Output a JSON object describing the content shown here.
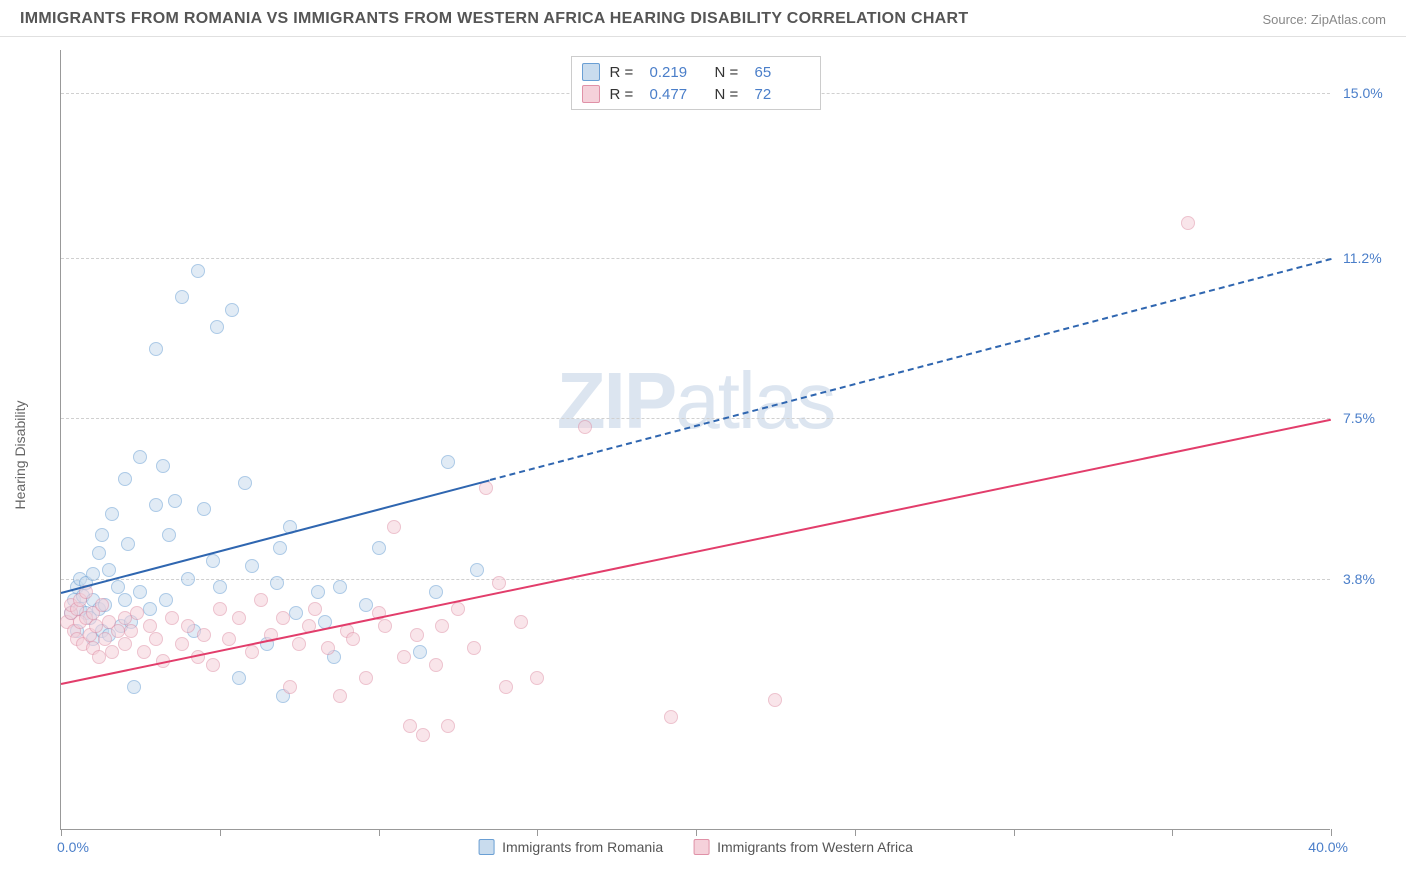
{
  "title": "IMMIGRANTS FROM ROMANIA VS IMMIGRANTS FROM WESTERN AFRICA HEARING DISABILITY CORRELATION CHART",
  "source": "Source: ZipAtlas.com",
  "ylabel": "Hearing Disability",
  "watermark": "ZIPatlas",
  "chart": {
    "type": "scatter",
    "xlim": [
      0,
      40
    ],
    "ylim": [
      -2,
      16
    ],
    "background_color": "#ffffff",
    "grid_color": "#d0d0d0",
    "axis_color": "#999999",
    "xtick_positions": [
      0,
      5,
      10,
      15,
      20,
      25,
      30,
      35,
      40
    ],
    "ytick_labels": [
      {
        "y": 3.8,
        "text": "3.8%"
      },
      {
        "y": 7.5,
        "text": "7.5%"
      },
      {
        "y": 11.2,
        "text": "11.2%"
      },
      {
        "y": 15.0,
        "text": "15.0%"
      }
    ],
    "x_left_label": "0.0%",
    "x_right_label": "40.0%"
  },
  "series": [
    {
      "name": "Immigrants from Romania",
      "key": "romania",
      "color_fill": "#c9dcee",
      "color_stroke": "#6a9fd4",
      "R": "0.219",
      "N": "65",
      "regression": {
        "x1": 0,
        "y1": 3.5,
        "x2": 40,
        "y2": 11.2,
        "solid_until_x": 13.5,
        "color": "#2f66b0"
      },
      "points": [
        [
          0.3,
          3.0
        ],
        [
          0.4,
          3.3
        ],
        [
          0.5,
          3.6
        ],
        [
          0.5,
          2.6
        ],
        [
          0.6,
          3.1
        ],
        [
          0.6,
          3.8
        ],
        [
          0.7,
          3.4
        ],
        [
          0.8,
          3.0
        ],
        [
          0.8,
          3.7
        ],
        [
          0.9,
          2.9
        ],
        [
          1.0,
          2.4
        ],
        [
          1.0,
          3.3
        ],
        [
          1.0,
          3.9
        ],
        [
          1.2,
          3.1
        ],
        [
          1.2,
          4.4
        ],
        [
          1.3,
          2.6
        ],
        [
          1.3,
          4.8
        ],
        [
          1.4,
          3.2
        ],
        [
          1.5,
          2.5
        ],
        [
          1.5,
          4.0
        ],
        [
          1.6,
          5.3
        ],
        [
          1.8,
          3.6
        ],
        [
          1.9,
          2.7
        ],
        [
          2.0,
          6.1
        ],
        [
          2.0,
          3.3
        ],
        [
          2.1,
          4.6
        ],
        [
          2.2,
          2.8
        ],
        [
          2.3,
          1.3
        ],
        [
          2.5,
          3.5
        ],
        [
          2.5,
          6.6
        ],
        [
          2.8,
          3.1
        ],
        [
          3.0,
          9.1
        ],
        [
          3.0,
          5.5
        ],
        [
          3.2,
          6.4
        ],
        [
          3.3,
          3.3
        ],
        [
          3.4,
          4.8
        ],
        [
          3.6,
          5.6
        ],
        [
          3.8,
          10.3
        ],
        [
          4.0,
          3.8
        ],
        [
          4.2,
          2.6
        ],
        [
          4.3,
          10.9
        ],
        [
          4.5,
          5.4
        ],
        [
          4.8,
          4.2
        ],
        [
          4.9,
          9.6
        ],
        [
          5.0,
          3.6
        ],
        [
          5.4,
          10.0
        ],
        [
          5.6,
          1.5
        ],
        [
          5.8,
          6.0
        ],
        [
          6.0,
          4.1
        ],
        [
          6.5,
          2.3
        ],
        [
          6.8,
          3.7
        ],
        [
          6.9,
          4.5
        ],
        [
          7.0,
          1.1
        ],
        [
          7.2,
          5.0
        ],
        [
          7.4,
          3.0
        ],
        [
          8.1,
          3.5
        ],
        [
          8.3,
          2.8
        ],
        [
          8.6,
          2.0
        ],
        [
          8.8,
          3.6
        ],
        [
          9.6,
          3.2
        ],
        [
          10.0,
          4.5
        ],
        [
          11.3,
          2.1
        ],
        [
          11.8,
          3.5
        ],
        [
          12.2,
          6.5
        ],
        [
          13.1,
          4.0
        ]
      ]
    },
    {
      "name": "Immigrants from Western Africa",
      "key": "wafrica",
      "color_fill": "#f5d1da",
      "color_stroke": "#e091a7",
      "R": "0.477",
      "N": "72",
      "regression": {
        "x1": 0,
        "y1": 1.4,
        "x2": 40,
        "y2": 7.5,
        "solid_until_x": 40,
        "color": "#e23d6b"
      },
      "points": [
        [
          0.2,
          2.8
        ],
        [
          0.3,
          3.0
        ],
        [
          0.3,
          3.2
        ],
        [
          0.4,
          2.6
        ],
        [
          0.5,
          3.1
        ],
        [
          0.5,
          2.4
        ],
        [
          0.6,
          2.8
        ],
        [
          0.6,
          3.3
        ],
        [
          0.7,
          2.3
        ],
        [
          0.8,
          2.9
        ],
        [
          0.8,
          3.5
        ],
        [
          0.9,
          2.5
        ],
        [
          1.0,
          2.2
        ],
        [
          1.0,
          3.0
        ],
        [
          1.1,
          2.7
        ],
        [
          1.2,
          2.0
        ],
        [
          1.3,
          3.2
        ],
        [
          1.4,
          2.4
        ],
        [
          1.5,
          2.8
        ],
        [
          1.6,
          2.1
        ],
        [
          1.8,
          2.6
        ],
        [
          2.0,
          2.9
        ],
        [
          2.0,
          2.3
        ],
        [
          2.2,
          2.6
        ],
        [
          2.4,
          3.0
        ],
        [
          2.6,
          2.1
        ],
        [
          2.8,
          2.7
        ],
        [
          3.0,
          2.4
        ],
        [
          3.2,
          1.9
        ],
        [
          3.5,
          2.9
        ],
        [
          3.8,
          2.3
        ],
        [
          4.0,
          2.7
        ],
        [
          4.3,
          2.0
        ],
        [
          4.5,
          2.5
        ],
        [
          4.8,
          1.8
        ],
        [
          5.0,
          3.1
        ],
        [
          5.3,
          2.4
        ],
        [
          5.6,
          2.9
        ],
        [
          6.0,
          2.1
        ],
        [
          6.3,
          3.3
        ],
        [
          6.6,
          2.5
        ],
        [
          7.0,
          2.9
        ],
        [
          7.2,
          1.3
        ],
        [
          7.5,
          2.3
        ],
        [
          7.8,
          2.7
        ],
        [
          8.0,
          3.1
        ],
        [
          8.4,
          2.2
        ],
        [
          8.8,
          1.1
        ],
        [
          9.0,
          2.6
        ],
        [
          9.2,
          2.4
        ],
        [
          9.6,
          1.5
        ],
        [
          10.0,
          3.0
        ],
        [
          10.2,
          2.7
        ],
        [
          10.5,
          5.0
        ],
        [
          10.8,
          2.0
        ],
        [
          11.0,
          0.4
        ],
        [
          11.2,
          2.5
        ],
        [
          11.4,
          0.2
        ],
        [
          11.8,
          1.8
        ],
        [
          12.0,
          2.7
        ],
        [
          12.2,
          0.4
        ],
        [
          12.5,
          3.1
        ],
        [
          13.0,
          2.2
        ],
        [
          13.4,
          5.9
        ],
        [
          13.8,
          3.7
        ],
        [
          14.0,
          1.3
        ],
        [
          14.5,
          2.8
        ],
        [
          15.0,
          1.5
        ],
        [
          16.5,
          7.3
        ],
        [
          19.2,
          0.6
        ],
        [
          22.5,
          1.0
        ],
        [
          35.5,
          12.0
        ]
      ]
    }
  ],
  "legend_top": {
    "R_label": "R  =",
    "N_label": "N  ="
  }
}
